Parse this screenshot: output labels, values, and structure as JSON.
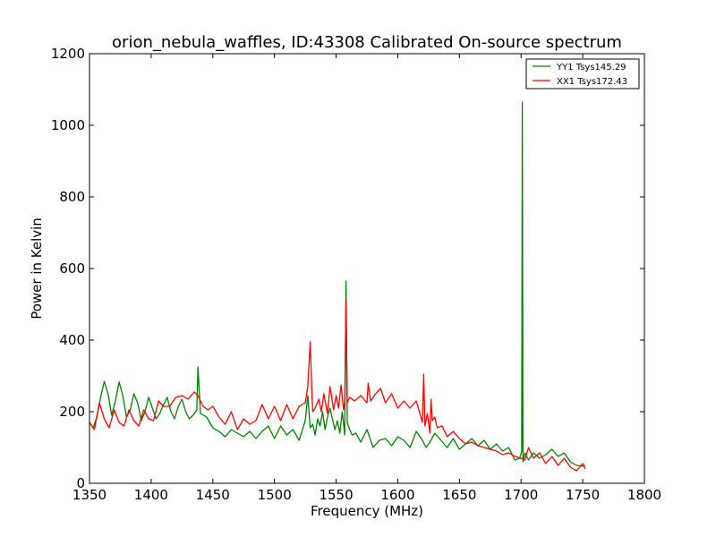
{
  "chart_data": {
    "type": "line",
    "title": "orion_nebula_waffles, ID:43308 Calibrated On-source spectrum",
    "xlabel": "Frequency (MHz)",
    "ylabel": "Power in Kelvin",
    "xlim": [
      1350,
      1800
    ],
    "ylim": [
      0,
      1200
    ],
    "xticks": [
      1350,
      1400,
      1450,
      1500,
      1550,
      1600,
      1650,
      1700,
      1750,
      1800
    ],
    "yticks": [
      0,
      200,
      400,
      600,
      800,
      1000,
      1200
    ],
    "grid": false,
    "legend_position": "top-right",
    "series": [
      {
        "name": "YY1 Tsys145.29",
        "color": "#008000",
        "x": [
          1350,
          1353,
          1356,
          1359,
          1362,
          1365,
          1368,
          1371,
          1374,
          1377,
          1380,
          1383,
          1386,
          1389,
          1392,
          1395,
          1398,
          1401,
          1404,
          1407,
          1410,
          1413,
          1416,
          1419,
          1422,
          1425,
          1428,
          1431,
          1434,
          1437,
          1438,
          1440,
          1445,
          1450,
          1455,
          1460,
          1465,
          1470,
          1475,
          1480,
          1485,
          1490,
          1495,
          1500,
          1505,
          1510,
          1515,
          1520,
          1525,
          1527,
          1529,
          1531,
          1533,
          1535,
          1537,
          1539,
          1541,
          1543,
          1545,
          1547,
          1549,
          1551,
          1553,
          1555,
          1557,
          1558,
          1559,
          1561,
          1563,
          1566,
          1570,
          1575,
          1580,
          1585,
          1590,
          1595,
          1600,
          1605,
          1610,
          1615,
          1620,
          1623,
          1626,
          1630,
          1635,
          1640,
          1645,
          1650,
          1655,
          1660,
          1665,
          1670,
          1675,
          1680,
          1685,
          1690,
          1695,
          1699,
          1700.5,
          1701,
          1701.5,
          1703,
          1706,
          1710,
          1715,
          1720,
          1725,
          1730,
          1735,
          1740,
          1745,
          1750,
          1752
        ],
        "y": [
          170,
          155,
          185,
          240,
          285,
          250,
          190,
          230,
          283,
          245,
          185,
          205,
          250,
          225,
          175,
          200,
          240,
          210,
          180,
          195,
          220,
          240,
          200,
          180,
          215,
          235,
          200,
          180,
          190,
          205,
          325,
          195,
          185,
          155,
          145,
          130,
          150,
          140,
          130,
          145,
          125,
          145,
          160,
          125,
          160,
          135,
          150,
          120,
          175,
          245,
          155,
          165,
          135,
          180,
          160,
          200,
          150,
          185,
          210,
          180,
          150,
          175,
          140,
          200,
          135,
          565,
          170,
          150,
          135,
          140,
          115,
          150,
          100,
          120,
          125,
          105,
          130,
          120,
          100,
          145,
          120,
          100,
          115,
          140,
          120,
          100,
          125,
          95,
          110,
          125,
          105,
          120,
          95,
          110,
          90,
          100,
          65,
          70,
          90,
          1065,
          60,
          85,
          65,
          85,
          70,
          80,
          95,
          75,
          85,
          60,
          50,
          48,
          50
        ]
      },
      {
        "name": "XX1 Tsys172.43",
        "color": "#ff0000",
        "x": [
          1350,
          1354,
          1358,
          1362,
          1366,
          1370,
          1374,
          1378,
          1382,
          1386,
          1390,
          1394,
          1398,
          1402,
          1406,
          1410,
          1415,
          1420,
          1425,
          1430,
          1435,
          1438,
          1442,
          1446,
          1450,
          1455,
          1460,
          1465,
          1470,
          1475,
          1480,
          1485,
          1490,
          1495,
          1500,
          1505,
          1510,
          1515,
          1520,
          1525,
          1527,
          1529,
          1530,
          1531,
          1533,
          1536,
          1538,
          1540,
          1543,
          1545,
          1548,
          1550,
          1552,
          1554,
          1556,
          1557,
          1558,
          1559,
          1561,
          1565,
          1570,
          1575,
          1576,
          1578,
          1582,
          1586,
          1590,
          1595,
          1600,
          1605,
          1610,
          1615,
          1620,
          1621,
          1622,
          1624,
          1626,
          1627,
          1628,
          1630,
          1632,
          1636,
          1640,
          1645,
          1650,
          1655,
          1660,
          1665,
          1670,
          1675,
          1680,
          1685,
          1690,
          1695,
          1700,
          1703,
          1706,
          1710,
          1715,
          1720,
          1725,
          1730,
          1735,
          1740,
          1745,
          1750,
          1752
        ],
        "y": [
          170,
          150,
          225,
          180,
          155,
          205,
          170,
          160,
          205,
          175,
          160,
          205,
          180,
          175,
          230,
          215,
          215,
          240,
          245,
          235,
          255,
          245,
          215,
          205,
          215,
          185,
          165,
          200,
          150,
          180,
          165,
          175,
          220,
          180,
          215,
          175,
          220,
          180,
          215,
          225,
          270,
          395,
          290,
          200,
          210,
          235,
          200,
          250,
          195,
          270,
          205,
          245,
          210,
          275,
          205,
          230,
          510,
          225,
          240,
          230,
          245,
          225,
          280,
          230,
          250,
          265,
          225,
          250,
          210,
          230,
          210,
          230,
          170,
          305,
          160,
          195,
          140,
          235,
          175,
          185,
          155,
          160,
          130,
          145,
          125,
          110,
          115,
          105,
          100,
          95,
          90,
          80,
          85,
          75,
          70,
          65,
          100,
          70,
          85,
          55,
          75,
          50,
          70,
          45,
          35,
          55,
          40
        ]
      }
    ]
  }
}
